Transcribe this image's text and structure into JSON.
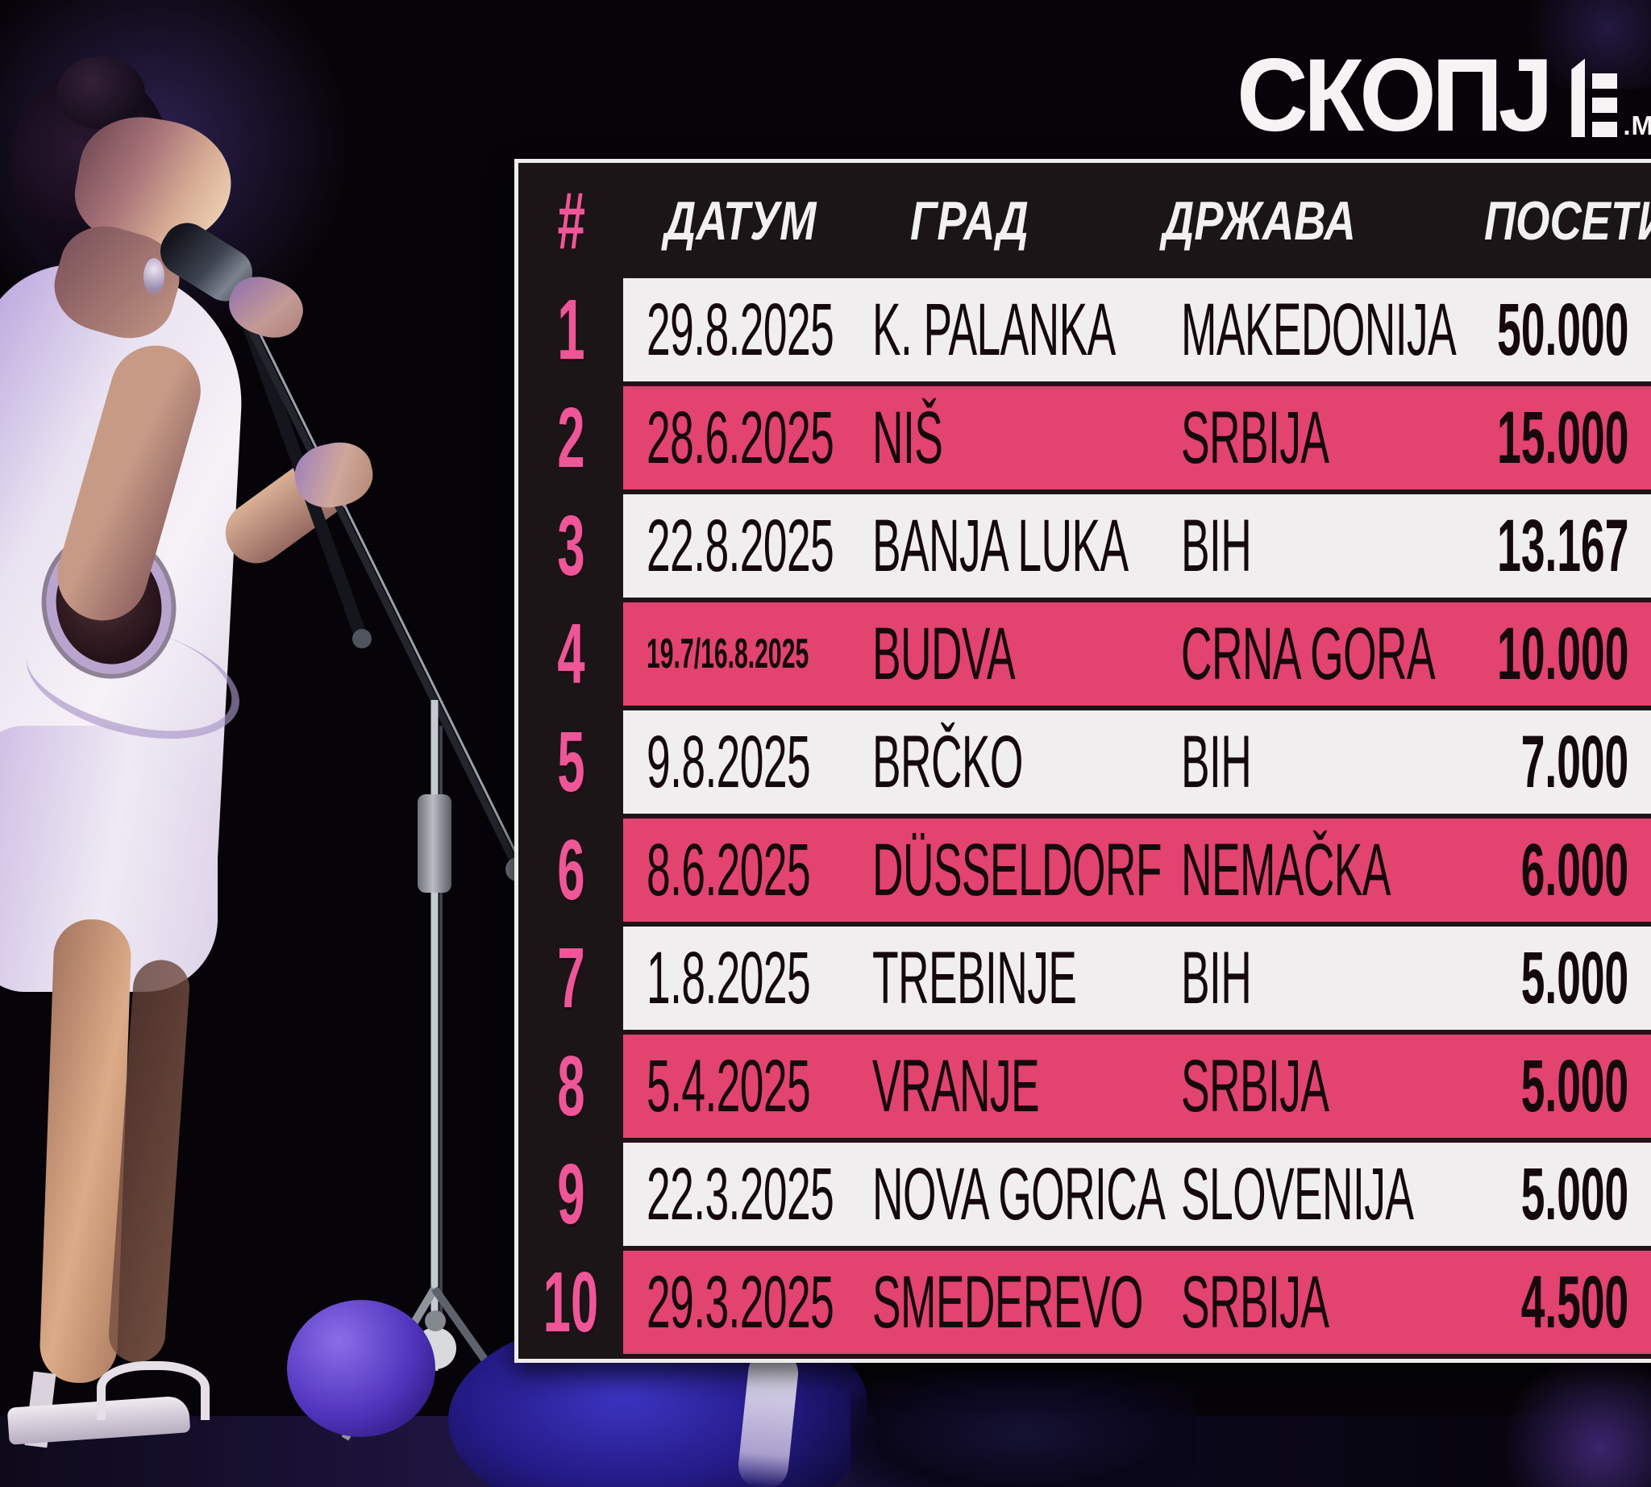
{
  "logo": {
    "word": "СКОПЈ",
    "stylized_letter": "Е",
    "suffix": ".МК"
  },
  "table": {
    "headers": {
      "rank": "#",
      "date": "ДАТУМ",
      "city": "ГРАД",
      "country": "ДРЖАВА",
      "visits": "ПОСЕТИ"
    },
    "rows": [
      {
        "rank": "1",
        "date": "29.8.2025",
        "city": "K. PALANKA",
        "country": "MAKEDONIJA",
        "visits": "50.000",
        "highlight": false,
        "small_date": false
      },
      {
        "rank": "2",
        "date": "28.6.2025",
        "city": "NIŠ",
        "country": "SRBIJA",
        "visits": "15.000",
        "highlight": true,
        "small_date": false
      },
      {
        "rank": "3",
        "date": "22.8.2025",
        "city": "BANJA LUKA",
        "country": "BIH",
        "visits": "13.167",
        "highlight": false,
        "small_date": false
      },
      {
        "rank": "4",
        "date": "19.7/16.8.2025",
        "city": "BUDVA",
        "country": "CRNA GORA",
        "visits": "10.000",
        "highlight": true,
        "small_date": true
      },
      {
        "rank": "5",
        "date": "9.8.2025",
        "city": "BRČKO",
        "country": "BIH",
        "visits": "7.000",
        "highlight": false,
        "small_date": false
      },
      {
        "rank": "6",
        "date": "8.6.2025",
        "city": "DÜSSELDORF",
        "country": "NEMAČKA",
        "visits": "6.000",
        "highlight": true,
        "small_date": false
      },
      {
        "rank": "7",
        "date": "1.8.2025",
        "city": "TREBINJE",
        "country": "BIH",
        "visits": "5.000",
        "highlight": false,
        "small_date": false
      },
      {
        "rank": "8",
        "date": "5.4.2025",
        "city": "VRANJE",
        "country": "SRBIJA",
        "visits": "5.000",
        "highlight": true,
        "small_date": false
      },
      {
        "rank": "9",
        "date": "22.3.2025",
        "city": "NOVA GORICA",
        "country": "SLOVENIJA",
        "visits": "5.000",
        "highlight": false,
        "small_date": false
      },
      {
        "rank": "10",
        "date": "29.3.2025",
        "city": "SMEDEREVO",
        "country": "SRBIJA",
        "visits": "4.500",
        "highlight": true,
        "small_date": false
      }
    ]
  },
  "colors": {
    "highlight_pink": "#e2436f",
    "row_white": "#f1eeef",
    "rank_pink": "#ee5697",
    "panel_dark": "#1b1517",
    "border_white": "#efecec"
  },
  "chart_data": {
    "type": "table",
    "title": "",
    "columns": [
      "#",
      "ДАТУМ",
      "ГРАД",
      "ДРЖАВА",
      "ПОСЕТИ"
    ],
    "rows": [
      [
        "1",
        "29.8.2025",
        "K. PALANKA",
        "MAKEDONIJA",
        "50.000"
      ],
      [
        "2",
        "28.6.2025",
        "NIŠ",
        "SRBIJA",
        "15.000"
      ],
      [
        "3",
        "22.8.2025",
        "BANJA LUKA",
        "BIH",
        "13.167"
      ],
      [
        "4",
        "19.7/16.8.2025",
        "BUDVA",
        "CRNA GORA",
        "10.000"
      ],
      [
        "5",
        "9.8.2025",
        "BRČKO",
        "BIH",
        "7.000"
      ],
      [
        "6",
        "8.6.2025",
        "DÜSSELDORF",
        "NEMAČKA",
        "6.000"
      ],
      [
        "7",
        "1.8.2025",
        "TREBINJE",
        "BIH",
        "5.000"
      ],
      [
        "8",
        "5.4.2025",
        "VRANJE",
        "SRBIJA",
        "5.000"
      ],
      [
        "9",
        "22.3.2025",
        "NOVA GORICA",
        "SLOVENIJA",
        "5.000"
      ],
      [
        "10",
        "29.3.2025",
        "SMEDEREVO",
        "SRBIJA",
        "4.500"
      ]
    ],
    "notes": "Concert attendance ranking infographic; rows 2,4,6,8,10 highlighted pink; attendance values use dot thousands separator"
  }
}
